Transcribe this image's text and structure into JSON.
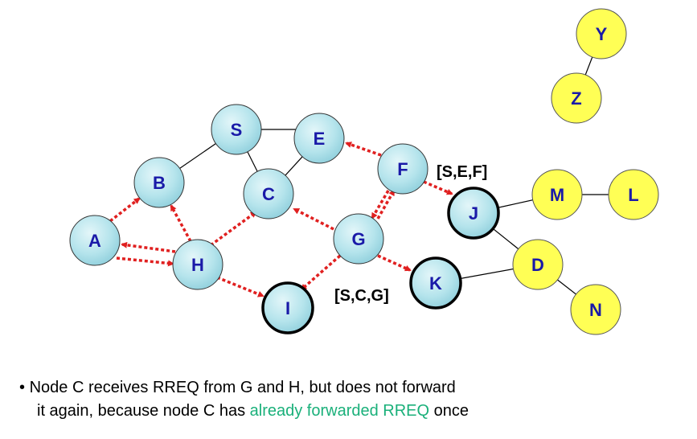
{
  "nodes": {
    "S": "S",
    "E": "E",
    "B": "B",
    "C": "C",
    "F": "F",
    "A": "A",
    "H": "H",
    "G": "G",
    "I": "I",
    "J": "J",
    "K": "K",
    "M": "M",
    "L": "L",
    "D": "D",
    "N": "N",
    "Y": "Y",
    "Z": "Z"
  },
  "route_labels": {
    "sef": "[S,E,F]",
    "scg": "[S,C,G]"
  },
  "caption": {
    "bullet": "•",
    "line1": "Node C receives RREQ from G and H, but does not forward",
    "line2_before": "it again, because node C has ",
    "line2_highlight": "already forwarded RREQ",
    "line2_after": " once"
  },
  "colors": {
    "blue_node": "#b5e4ec",
    "yellow_node": "#ffff55",
    "rreq_arrow": "#e02020",
    "node_label": "#1a1aa8",
    "highlight": "#1ab07a"
  }
}
